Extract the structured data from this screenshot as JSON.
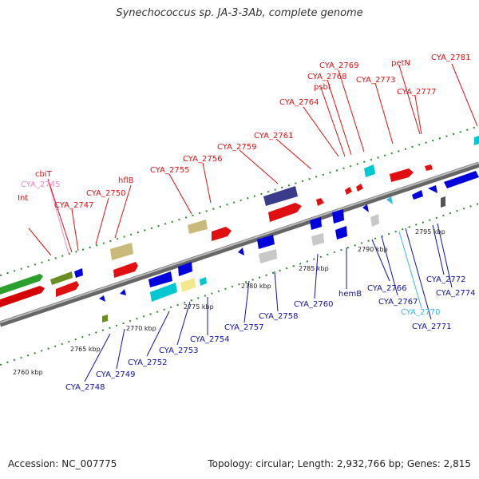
{
  "title": "Synechococcus sp. JA-3-3Ab, complete genome",
  "footer": {
    "accession": "Accession: NC_007775",
    "info": "Topology: circular; Length: 2,932,766 bp; Genes: 2,815"
  },
  "ticks": [
    "2760 kbp",
    "2765 kbp",
    "2770 kbp",
    "2775 kbp",
    "2780 kbp",
    "2785 kbp",
    "2790 kbp",
    "2795 kbp"
  ],
  "labels_top": [
    "Int",
    "CYA_2745",
    "cbiT",
    "CYA_2747",
    "CYA_2750",
    "hflB",
    "CYA_2755",
    "CYA_2756",
    "CYA_2759",
    "CYA_2761",
    "CYA_2764",
    "psbI",
    "CYA_2768",
    "CYA_2769",
    "CYA_2773",
    "petN",
    "CYA_2777",
    "CYA_2781"
  ],
  "labels_bottom": [
    "CYA_2748",
    "CYA_2749",
    "CYA_2752",
    "CYA_2753",
    "CYA_2754",
    "CYA_2757",
    "CYA_2758",
    "CYA_2760",
    "hemB",
    "CYA_2766",
    "CYA_2767",
    "CYA_2770",
    "CYA_2771",
    "CYA_2772",
    "CYA_2774"
  ],
  "colors": {
    "top_label": "#dd1111",
    "top_label_light": "#ee88cc",
    "bottom_label": "#1111aa",
    "bottom_label_light": "#33bbee",
    "backbone": "#888888",
    "dots": "#2a8a2a"
  }
}
